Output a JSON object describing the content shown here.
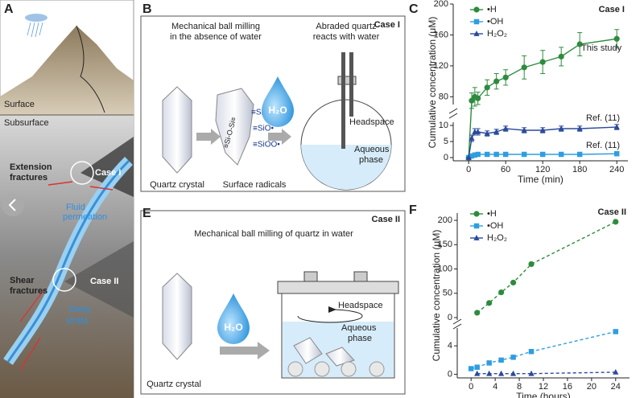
{
  "panel_A": {
    "label": "A",
    "surface": "Surface",
    "subsurface": "Subsurface",
    "extension_fractures": [
      "Extension",
      "fractures"
    ],
    "case1": "Case I",
    "fluid_permeation": [
      "Fluid",
      "permeation"
    ],
    "shear_fractures": [
      "Shear",
      "fractures"
    ],
    "case2": "Case II",
    "deep": [
      "Deep",
      "strata"
    ]
  },
  "panel_B": {
    "label": "B",
    "case": "Case I",
    "step1": [
      "Mechanical ball milling",
      "in the absence of water"
    ],
    "step2": [
      "Abraded quartz",
      "reacts with water"
    ],
    "bond": "≡Si-O-Si≡",
    "radicals": [
      "≡Si•",
      "≡SiO•",
      "≡SiOO•"
    ],
    "water": "H₂O",
    "headspace": "Headspace",
    "aqueous": [
      "Aqueous",
      "phase"
    ],
    "crystal": "Quartz crystal",
    "surface_radicals": "Surface radicals"
  },
  "panel_E": {
    "label": "E",
    "case": "Case II",
    "step": "Mechanical ball milling of quartz in water",
    "water": "H₂O",
    "headspace": "Headspace",
    "aqueous": [
      "Aqueous",
      "phase"
    ],
    "crystal": "Quartz crystal"
  },
  "chart_data": [
    {
      "type": "line",
      "panel_label": "C",
      "line_style": "solid",
      "legend": "upper left",
      "annotations": [
        "Case I",
        "This study",
        "Ref. (11)",
        "Ref. (11)"
      ],
      "xlabel": "Time (min)",
      "ylabel": "Cumulative concentration (μM)",
      "x": [
        0,
        5,
        10,
        15,
        30,
        45,
        60,
        90,
        120,
        150,
        180,
        240
      ],
      "xlim": [
        -25,
        258
      ],
      "xticks": [
        0,
        60,
        120,
        180,
        240
      ],
      "ylim": [
        -1,
        11
      ],
      "yticks": [
        0,
        5,
        10
      ],
      "ylim_upper": [
        70,
        200
      ],
      "yticks_upper": [
        80,
        120,
        160,
        200
      ],
      "series": [
        {
          "name": "•H",
          "color": "#2e8b3e",
          "marker": "circle",
          "values": [
            0,
            75,
            80,
            78,
            92,
            100,
            105,
            118,
            125,
            132,
            148,
            155
          ],
          "errors": [
            0,
            10,
            12,
            8,
            10,
            10,
            10,
            15,
            15,
            12,
            15,
            12
          ]
        },
        {
          "name": "•OH",
          "color": "#2f9ee0",
          "marker": "square",
          "values": [
            0,
            0.5,
            0.8,
            1,
            1,
            1,
            1,
            1,
            1,
            1,
            1,
            1.2
          ]
        },
        {
          "name": "H₂O₂",
          "color": "#2a4a9a",
          "marker": "triangle",
          "values": [
            0,
            6,
            8,
            8,
            7.5,
            8,
            9,
            8.5,
            8.5,
            9,
            9,
            9.5
          ],
          "errors": [
            0,
            1,
            1,
            1,
            0.8,
            0.8,
            0.8,
            0.8,
            0.8,
            0.8,
            0.8,
            0.8
          ]
        }
      ]
    },
    {
      "type": "line",
      "panel_label": "F",
      "line_style": "dashed",
      "legend": "upper left",
      "annotations": [
        "Case II"
      ],
      "xlabel": "Time (hours)",
      "ylabel": "Cumulative concentration (μM)",
      "x": [
        0,
        1,
        3,
        5,
        7,
        10,
        24
      ],
      "xlim": [
        -2.3,
        26.3
      ],
      "xticks": [
        0,
        4,
        8,
        12,
        16,
        20,
        24
      ],
      "ylim": [
        -0.5,
        6.5
      ],
      "yticks": [
        0,
        4
      ],
      "ylim_upper": [
        -5,
        215
      ],
      "yticks_upper": [
        0,
        50,
        100,
        150,
        200
      ],
      "series": [
        {
          "name": "•H",
          "color": "#2e8b3e",
          "marker": "circle",
          "values": [
            null,
            10,
            30,
            52,
            72,
            110,
            197
          ]
        },
        {
          "name": "•OH",
          "color": "#2f9ee0",
          "marker": "square",
          "values": [
            0.8,
            1.0,
            1.6,
            2.0,
            2.4,
            3.2,
            6.0
          ]
        },
        {
          "name": "H₂O₂",
          "color": "#2a4a9a",
          "marker": "triangle",
          "values": [
            null,
            0.1,
            0.1,
            0.1,
            0.1,
            0.1,
            0.3
          ]
        }
      ]
    }
  ]
}
